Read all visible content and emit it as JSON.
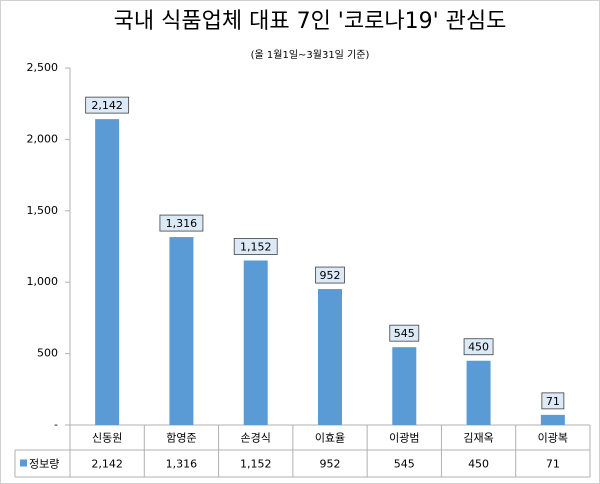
{
  "chart_data": {
    "type": "bar",
    "title": "국내 식품업체 대표 7인 '코로나19' 관심도",
    "subtitle": "(올 1월1일~3월31일 기준)",
    "categories": [
      "신동원",
      "함영준",
      "손경식",
      "이효율",
      "이광범",
      "김재옥",
      "이광복"
    ],
    "series": [
      {
        "name": "정보량",
        "color": "#5b9bd5",
        "values": [
          2142,
          1316,
          1152,
          952,
          545,
          450,
          71
        ],
        "value_labels": [
          "2,142",
          "1,316",
          "1,152",
          "952",
          "545",
          "450",
          "71"
        ]
      }
    ],
    "ylim": [
      0,
      2500
    ],
    "yticks": [
      {
        "value": 0,
        "label": "-"
      },
      {
        "value": 500,
        "label": "500"
      },
      {
        "value": 1000,
        "label": "1,000"
      },
      {
        "value": 1500,
        "label": "1,500"
      },
      {
        "value": 2000,
        "label": "2,000"
      },
      {
        "value": 2500,
        "label": "2,500"
      }
    ],
    "grid": false
  }
}
